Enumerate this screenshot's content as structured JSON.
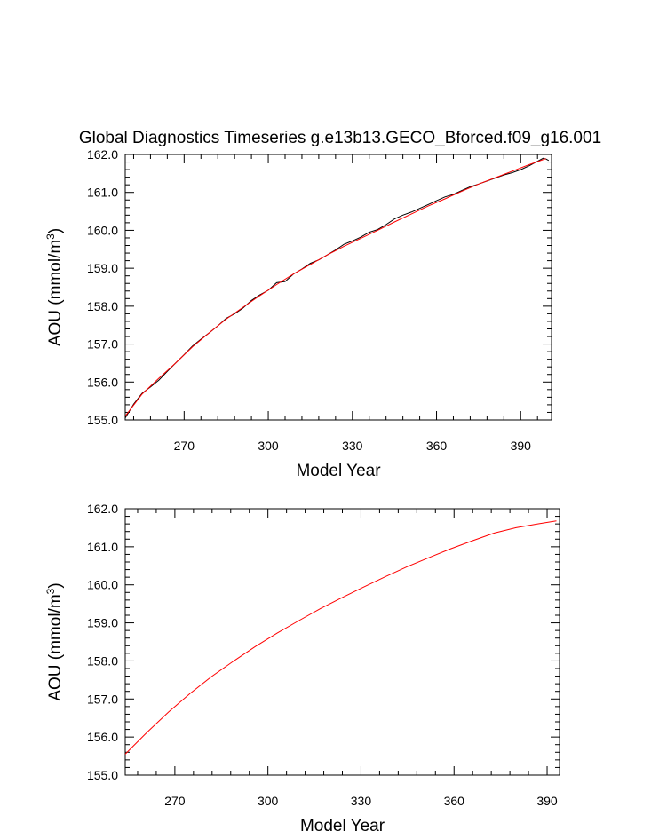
{
  "figure": {
    "title": "Global Diagnostics Timeseries g.e13b13.GECO_Bforced.f09_g16.001"
  },
  "colors": {
    "fit_line": "#ff0000",
    "raw_line": "#000000",
    "axes": "#000000",
    "background": "#ffffff"
  },
  "chart_data": [
    {
      "type": "line",
      "title": "Global Diagnostics Timeseries g.e13b13.GECO_Bforced.f09_g16.001",
      "xlabel": "Model Year",
      "ylabel": "AOU (mmol/m",
      "ylabel_sup": "3",
      "ylabel_tail": ")",
      "xlim": [
        249,
        401
      ],
      "ylim": [
        155.0,
        162.0
      ],
      "xticks": [
        270,
        300,
        330,
        360,
        390
      ],
      "xtick_labels": [
        "270",
        "300",
        "330",
        "360",
        "390"
      ],
      "yticks": [
        155.0,
        156.0,
        157.0,
        158.0,
        159.0,
        160.0,
        161.0,
        162.0
      ],
      "ytick_labels": [
        "155.0",
        "156.0",
        "157.0",
        "158.0",
        "159.0",
        "160.0",
        "161.0",
        "162.0"
      ],
      "series": [
        {
          "color": "#000000",
          "x": [
            249,
            252,
            255,
            258,
            261,
            264,
            267,
            270,
            273,
            276,
            279,
            282,
            285,
            288,
            291,
            294,
            297,
            300,
            303,
            306,
            309,
            312,
            315,
            318,
            321,
            324,
            327,
            330,
            333,
            336,
            339,
            342,
            345,
            348,
            351,
            354,
            357,
            360,
            363,
            366,
            369,
            372,
            375,
            378,
            381,
            384,
            387,
            390,
            393,
            396,
            398,
            399,
            400
          ],
          "y": [
            155.05,
            155.42,
            155.7,
            155.87,
            156.05,
            156.28,
            156.5,
            156.72,
            156.95,
            157.13,
            157.3,
            157.48,
            157.68,
            157.8,
            157.95,
            158.15,
            158.3,
            158.42,
            158.62,
            158.65,
            158.85,
            158.98,
            159.13,
            159.22,
            159.35,
            159.48,
            159.63,
            159.72,
            159.82,
            159.95,
            160.02,
            160.15,
            160.3,
            160.4,
            160.48,
            160.58,
            160.68,
            160.78,
            160.88,
            160.95,
            161.05,
            161.15,
            161.22,
            161.3,
            161.38,
            161.46,
            161.52,
            161.6,
            161.7,
            161.82,
            161.9,
            161.88,
            161.84
          ]
        },
        {
          "color": "#ff0000",
          "x": [
            249,
            255,
            261,
            267,
            273,
            279,
            285,
            291,
            297,
            303,
            309,
            315,
            321,
            327,
            333,
            339,
            345,
            351,
            357,
            363,
            369,
            375,
            381,
            387,
            393,
            399
          ],
          "y": [
            155.1,
            155.68,
            156.1,
            156.5,
            156.93,
            157.3,
            157.66,
            157.97,
            158.28,
            158.57,
            158.85,
            159.1,
            159.35,
            159.58,
            159.79,
            160.0,
            160.22,
            160.43,
            160.64,
            160.83,
            161.03,
            161.22,
            161.39,
            161.56,
            161.73,
            161.89
          ]
        }
      ]
    },
    {
      "type": "line",
      "xlabel": "Model Year",
      "ylabel": "AOU (mmol/m",
      "ylabel_sup": "3",
      "ylabel_tail": ")",
      "xlim": [
        254,
        394
      ],
      "ylim": [
        155.0,
        162.0
      ],
      "xticks": [
        270,
        300,
        330,
        360,
        390
      ],
      "xtick_labels": [
        "270",
        "300",
        "330",
        "360",
        "390"
      ],
      "yticks": [
        155.0,
        156.0,
        157.0,
        158.0,
        159.0,
        160.0,
        161.0,
        162.0
      ],
      "ytick_labels": [
        "155.0",
        "156.0",
        "157.0",
        "158.0",
        "159.0",
        "160.0",
        "161.0",
        "162.0"
      ],
      "series": [
        {
          "color": "#ff0000",
          "x": [
            254,
            261,
            268,
            275,
            282,
            289,
            296,
            303,
            310,
            317,
            324,
            331,
            338,
            345,
            352,
            359,
            366,
            373,
            380,
            387,
            393
          ],
          "y": [
            155.55,
            156.12,
            156.66,
            157.15,
            157.6,
            158.0,
            158.38,
            158.73,
            159.06,
            159.38,
            159.67,
            159.95,
            160.22,
            160.48,
            160.72,
            160.95,
            161.16,
            161.36,
            161.5,
            161.6,
            161.68
          ]
        }
      ]
    }
  ]
}
